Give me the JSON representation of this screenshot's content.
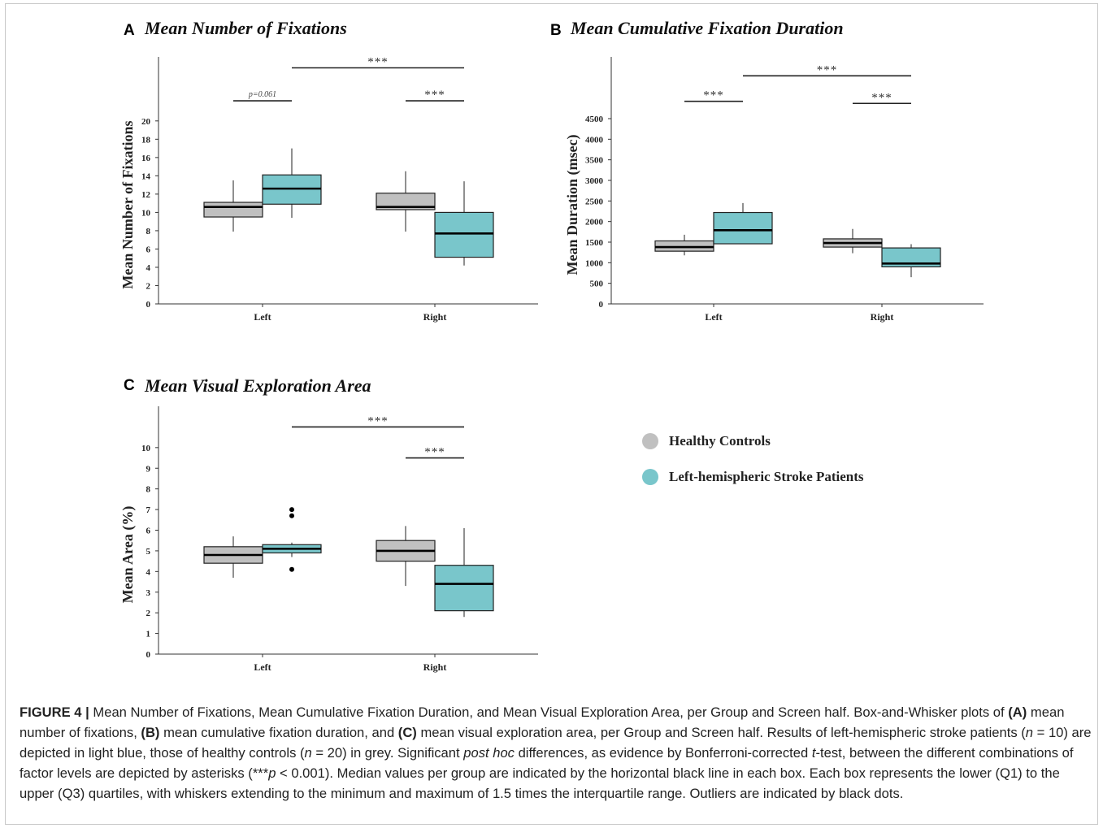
{
  "colors": {
    "controls": "#c0c0c0",
    "patients": "#79c6cb",
    "line": "#000000"
  },
  "legend": {
    "items": [
      {
        "label": "Healthy Controls",
        "color": "#c0c0c0"
      },
      {
        "label": "Left-hemispheric Stroke Patients",
        "color": "#79c6cb"
      }
    ]
  },
  "caption": {
    "fig_label": "FIGURE 4 |",
    "t1": " Mean Number of Fixations, Mean Cumulative Fixation Duration, and Mean Visual Exploration Area, per Group and Screen half. Box-and-Whisker plots of ",
    "a": "(A)",
    "t2": " mean number of fixations, ",
    "b": "(B)",
    "t3": " mean cumulative fixation duration, and ",
    "c": "(C)",
    "t4": " mean visual exploration area, per Group and Screen half. Results of left-hemispheric stroke patients (",
    "n1": "n",
    "t5": " = 10) are depicted in light blue, those of healthy controls (",
    "n2": "n",
    "t6": " = 20) in grey. Significant ",
    "posthoc": "post hoc",
    "t7": " differences, as evidence by Bonferroni-corrected ",
    "ttest": "t",
    "t8": "-test, between the different combinations of factor levels are depicted by asterisks (***",
    "p": "p",
    "t9": " < 0.001). Median values per group are indicated by the horizontal black line in each box. Each box represents the lower (Q1) to the upper (Q3) quartiles, with whiskers extending to the minimum and maximum of 1.5 times the interquartile range. Outliers are indicated by black dots."
  },
  "chart_data": [
    {
      "type": "box",
      "panel_label": "A",
      "title": "Mean Number of Fixations",
      "ylabel": "Mean Number of Fixations",
      "xlabel": "",
      "categories": [
        "Left",
        "Right"
      ],
      "ylim": [
        0,
        27
      ],
      "yticks": [
        0,
        2,
        4,
        6,
        8,
        10,
        12,
        14,
        16,
        18,
        20
      ],
      "series": [
        {
          "name": "Healthy Controls",
          "boxes": [
            {
              "min": 7.9,
              "q1": 9.5,
              "median": 10.6,
              "q3": 11.1,
              "max": 13.5,
              "outliers": []
            },
            {
              "min": 7.9,
              "q1": 10.3,
              "median": 10.6,
              "q3": 12.1,
              "max": 14.5,
              "outliers": []
            }
          ]
        },
        {
          "name": "Left-hemispheric Stroke Patients",
          "boxes": [
            {
              "min": 9.4,
              "q1": 10.9,
              "median": 12.6,
              "q3": 14.1,
              "max": 17.0,
              "outliers": []
            },
            {
              "min": 4.2,
              "q1": 5.1,
              "median": 7.7,
              "q3": 10.0,
              "max": 13.4,
              "outliers": []
            }
          ]
        }
      ],
      "annotations": [
        {
          "text": "p=0.061",
          "level": 22.2,
          "from": "Left.Healthy Controls",
          "to": "Left.Left-hemispheric Stroke Patients"
        },
        {
          "text": "***",
          "level": 22.2,
          "from": "Right.Healthy Controls",
          "to": "Right.Left-hemispheric Stroke Patients"
        },
        {
          "text": "***",
          "level": 25.8,
          "from": "Left.Left-hemispheric Stroke Patients",
          "to": "Right.Left-hemispheric Stroke Patients"
        }
      ]
    },
    {
      "type": "box",
      "panel_label": "B",
      "title": "Mean Cumulative Fixation Duration",
      "ylabel": "Mean Duration (msec)",
      "xlabel": "",
      "categories": [
        "Left",
        "Right"
      ],
      "ylim": [
        0,
        6000
      ],
      "yticks": [
        0,
        500,
        1000,
        1500,
        2000,
        2500,
        3000,
        3500,
        4000,
        4500
      ],
      "series": [
        {
          "name": "Healthy Controls",
          "boxes": [
            {
              "min": 1180,
              "q1": 1280,
              "median": 1380,
              "q3": 1530,
              "max": 1680,
              "outliers": []
            },
            {
              "min": 1230,
              "q1": 1380,
              "median": 1480,
              "q3": 1580,
              "max": 1820,
              "outliers": []
            }
          ]
        },
        {
          "name": "Left-hemispheric Stroke Patients",
          "boxes": [
            {
              "min": 1450,
              "q1": 1460,
              "median": 1790,
              "q3": 2220,
              "max": 2450,
              "outliers": []
            },
            {
              "min": 650,
              "q1": 900,
              "median": 980,
              "q3": 1360,
              "max": 1450,
              "outliers": []
            }
          ]
        }
      ],
      "annotations": [
        {
          "text": "***",
          "level": 4920,
          "from": "Left.Healthy Controls",
          "to": "Left.Left-hemispheric Stroke Patients"
        },
        {
          "text": "***",
          "level": 4870,
          "from": "Right.Healthy Controls",
          "to": "Right.Left-hemispheric Stroke Patients"
        },
        {
          "text": "***",
          "level": 5540,
          "from": "Left.Left-hemispheric Stroke Patients",
          "to": "Right.Left-hemispheric Stroke Patients"
        }
      ]
    },
    {
      "type": "box",
      "panel_label": "C",
      "title": "Mean Visual Exploration Area",
      "ylabel": "Mean Area (%)",
      "xlabel": "",
      "categories": [
        "Left",
        "Right"
      ],
      "ylim": [
        0,
        12
      ],
      "yticks": [
        0,
        1,
        2,
        3,
        4,
        5,
        6,
        7,
        8,
        9,
        10
      ],
      "series": [
        {
          "name": "Healthy Controls",
          "boxes": [
            {
              "min": 3.7,
              "q1": 4.4,
              "median": 4.8,
              "q3": 5.2,
              "max": 5.7,
              "outliers": []
            },
            {
              "min": 3.3,
              "q1": 4.5,
              "median": 5.0,
              "q3": 5.5,
              "max": 6.2,
              "outliers": []
            }
          ]
        },
        {
          "name": "Left-hemispheric Stroke Patients",
          "boxes": [
            {
              "min": 4.7,
              "q1": 4.9,
              "median": 5.1,
              "q3": 5.3,
              "max": 5.4,
              "outliers": [
                4.1,
                6.7,
                7.0
              ]
            },
            {
              "min": 1.8,
              "q1": 2.1,
              "median": 3.4,
              "q3": 4.3,
              "max": 6.1,
              "outliers": []
            }
          ]
        }
      ],
      "annotations": [
        {
          "text": "***",
          "level": 9.5,
          "from": "Right.Healthy Controls",
          "to": "Right.Left-hemispheric Stroke Patients"
        },
        {
          "text": "***",
          "level": 11.0,
          "from": "Left.Left-hemispheric Stroke Patients",
          "to": "Right.Left-hemispheric Stroke Patients"
        }
      ]
    }
  ]
}
